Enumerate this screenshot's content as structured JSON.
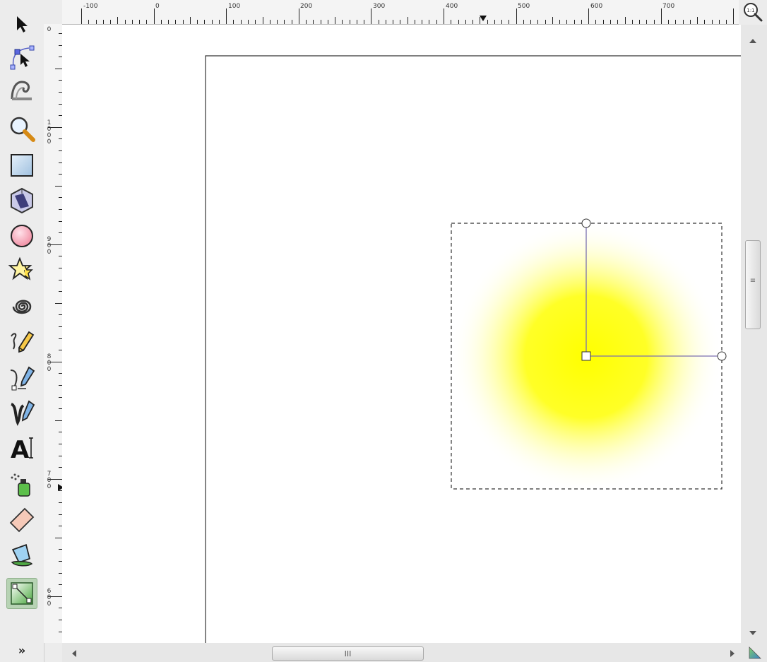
{
  "toolbox": {
    "tools": [
      {
        "name": "selector-tool",
        "icon": "arrow-pointer-icon"
      },
      {
        "name": "node-tool",
        "icon": "node-editor-icon"
      },
      {
        "name": "tweak-tool",
        "icon": "tweak-wave-icon"
      },
      {
        "name": "zoom-tool",
        "icon": "magnifier-icon"
      },
      {
        "name": "rectangle-tool",
        "icon": "rectangle-icon"
      },
      {
        "name": "3d-box-tool",
        "icon": "3d-box-icon"
      },
      {
        "name": "ellipse-tool",
        "icon": "circle-icon"
      },
      {
        "name": "star-tool",
        "icon": "star-icon"
      },
      {
        "name": "spiral-tool",
        "icon": "spiral-icon"
      },
      {
        "name": "pencil-tool",
        "icon": "pencil-icon"
      },
      {
        "name": "pen-tool",
        "icon": "pen-bezier-icon"
      },
      {
        "name": "calligraphy-tool",
        "icon": "calligraphy-icon"
      },
      {
        "name": "text-tool",
        "icon": "text-a-icon"
      },
      {
        "name": "spray-tool",
        "icon": "spray-can-icon"
      },
      {
        "name": "eraser-tool",
        "icon": "eraser-icon"
      },
      {
        "name": "paint-bucket-tool",
        "icon": "paint-bucket-icon"
      },
      {
        "name": "gradient-tool",
        "icon": "gradient-icon",
        "active": true
      }
    ],
    "more_label": "»"
  },
  "top_ruler": {
    "labels": [
      "-100",
      "0",
      "100",
      "200",
      "300",
      "400",
      "500",
      "600",
      "700"
    ]
  },
  "left_ruler": {
    "labels": [
      "0",
      "1000",
      "900",
      "800",
      "700",
      "600"
    ]
  },
  "zoom_button": {
    "icon": "zoom-1-1-icon",
    "label": "1:1"
  },
  "scrollbars": {
    "vertical_grip": "≡",
    "horizontal_grip": "III"
  },
  "canvas": {
    "gradient": {
      "type": "radial",
      "center_color": "#ffff00",
      "edge_color": "#ffffff"
    },
    "accent_colors": {
      "handle_line": "#7a6fb0",
      "page_border": "#333333",
      "selection_dash": "#333333"
    }
  }
}
